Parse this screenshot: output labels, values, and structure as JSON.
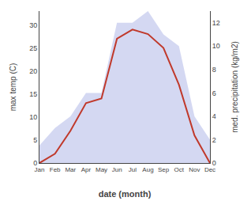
{
  "chart_data": {
    "type": "line",
    "xlabel": "date (month)",
    "ylabel": "max temp (C)",
    "y2label": "med. precipitation (kg/m2)",
    "categories": [
      "Jan",
      "Feb",
      "Mar",
      "Apr",
      "May",
      "Jun",
      "Jul",
      "Aug",
      "Sep",
      "Oct",
      "Nov",
      "Dec"
    ],
    "series": [
      {
        "type": "area",
        "axis": "y2",
        "color": "#b0b8e8",
        "values": [
          1.5,
          3,
          4,
          6,
          6,
          12,
          12,
          13,
          11,
          10,
          4,
          2
        ]
      },
      {
        "type": "line",
        "color": "#c0392b",
        "values": [
          0,
          2,
          7,
          13,
          14,
          27,
          29,
          28,
          25,
          17,
          6,
          0
        ]
      }
    ],
    "ylim": [
      0,
      33
    ],
    "yticks": [
      0,
      5,
      10,
      15,
      20,
      25,
      30
    ],
    "y2lim": [
      0,
      13
    ],
    "y2ticks": [
      0,
      2,
      4,
      6,
      8,
      10,
      12
    ],
    "grid": false
  }
}
